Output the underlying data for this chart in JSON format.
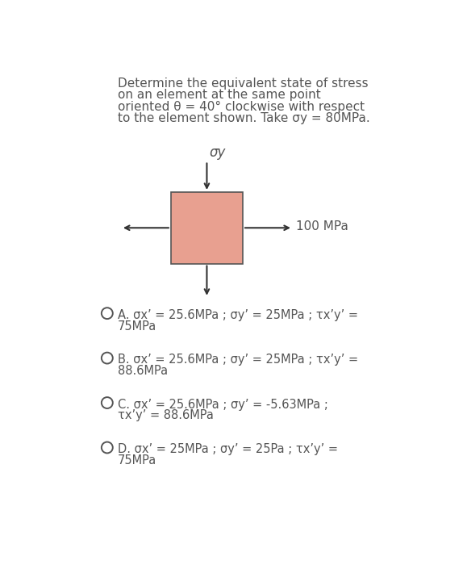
{
  "title_lines": [
    "Determine the equivalent state of stress",
    "on an element at the same point",
    "oriented θ = 40° clockwise with respect",
    "to the element shown. Take σy = 80MPa."
  ],
  "box_color": "#e8a090",
  "box_edge_color": "#555555",
  "arrow_color": "#333333",
  "label_100MPa": "100 MPa",
  "sigma_y_label": "σy",
  "options": [
    {
      "letter": "A",
      "line1": "σx’ = 25.6MPa ; σy’ = 25MPa ; τx’y’ =",
      "line2": "75MPa"
    },
    {
      "letter": "B",
      "line1": "σx’ = 25.6MPa ; σy’ = 25MPa ; τx’y’ =",
      "line2": "88.6MPa"
    },
    {
      "letter": "C",
      "line1": "σx’ = 25.6MPa ; σy’ = -5.63MPa ;",
      "line2": "τx’y’ = 88.6MPa"
    },
    {
      "letter": "D",
      "line1": "σx’ = 25MPa ; σy’ = 25Pa ; τx’y’ =",
      "line2": "75MPa"
    }
  ],
  "bg_color": "#ffffff",
  "text_color": "#555555",
  "option_fontsize": 10.5,
  "title_fontsize": 11,
  "sigma_label_fontsize": 12,
  "mpa_label_fontsize": 11
}
